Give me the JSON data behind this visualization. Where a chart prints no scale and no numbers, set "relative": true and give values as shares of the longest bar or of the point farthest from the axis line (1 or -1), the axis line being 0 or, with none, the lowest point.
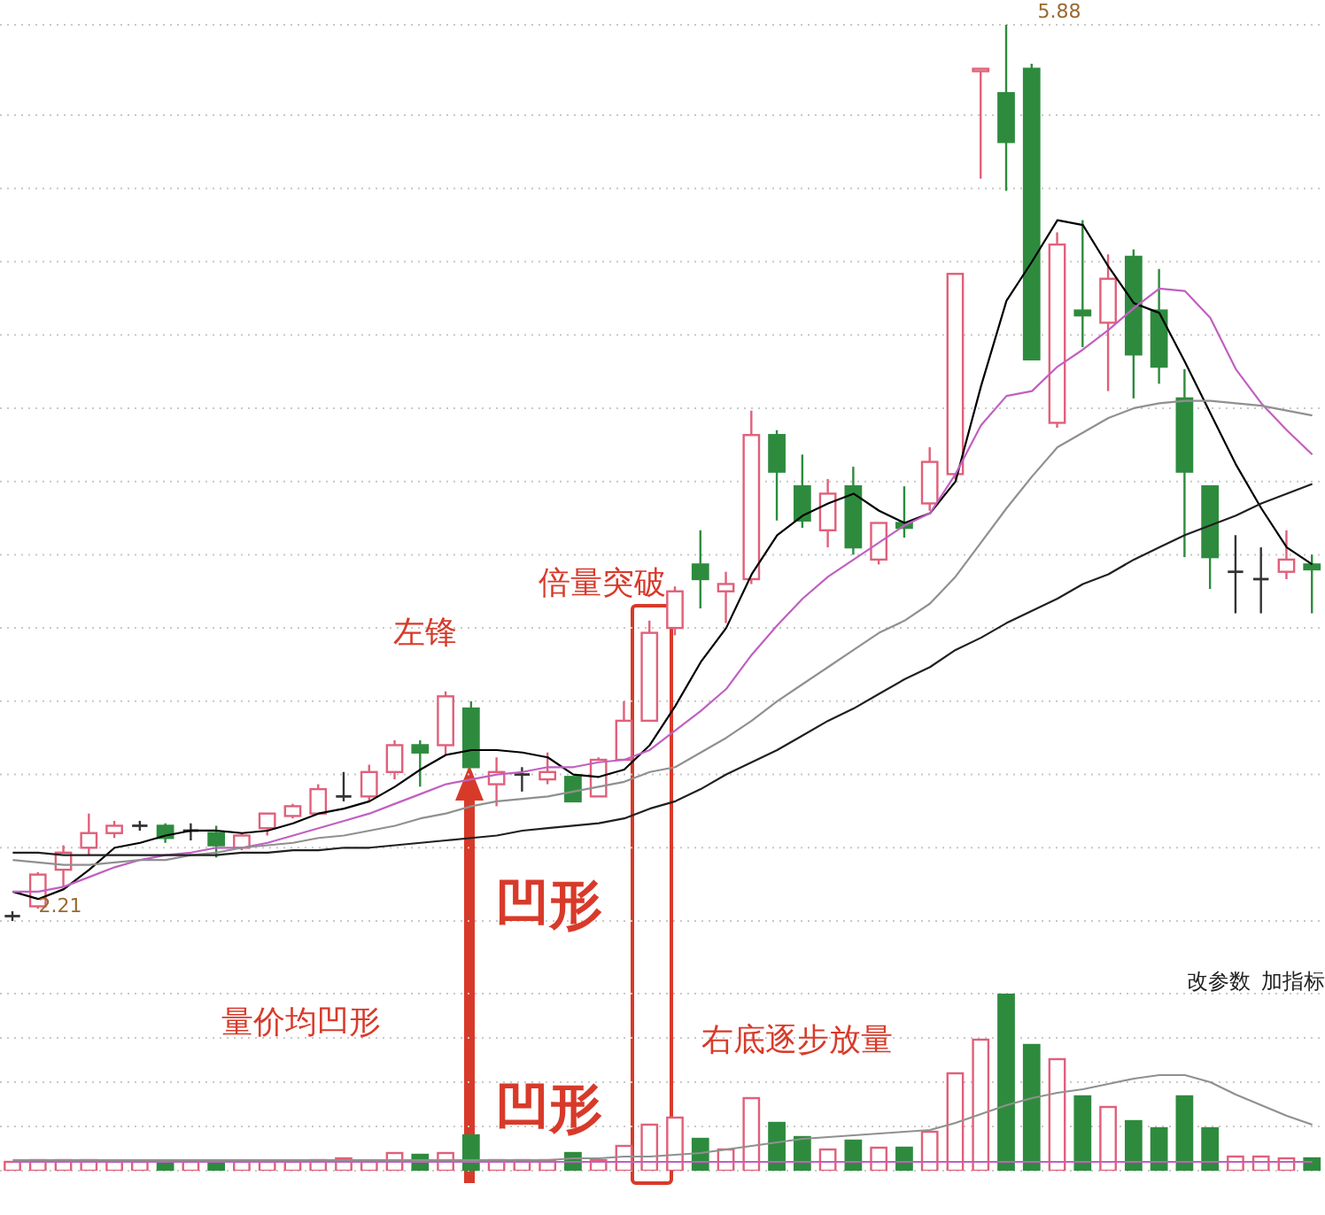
{
  "chart_data": [
    {
      "type": "candlestick",
      "categories": [
        null,
        null,
        null,
        null,
        null,
        null,
        null,
        null,
        null,
        null,
        null,
        null,
        null,
        null,
        null,
        null,
        null,
        null,
        null,
        null,
        null,
        null,
        null,
        null,
        null,
        null,
        null,
        null,
        null,
        null,
        null,
        null,
        null,
        null,
        null,
        null,
        null,
        null,
        null,
        null,
        null,
        null,
        null,
        null,
        null,
        null,
        null,
        null,
        null,
        null,
        null,
        null
      ],
      "ohlc": [
        [
          2.23,
          2.25,
          2.21,
          2.23
        ],
        [
          2.27,
          2.41,
          2.26,
          2.4
        ],
        [
          2.42,
          2.52,
          2.35,
          2.49
        ],
        [
          2.51,
          2.65,
          2.48,
          2.57
        ],
        [
          2.57,
          2.62,
          2.55,
          2.6
        ],
        [
          2.6,
          2.62,
          2.58,
          2.6
        ],
        [
          2.6,
          2.61,
          2.53,
          2.55
        ],
        [
          2.58,
          2.61,
          2.54,
          2.58
        ],
        [
          2.57,
          2.6,
          2.47,
          2.52
        ],
        [
          2.51,
          2.57,
          2.5,
          2.56
        ],
        [
          2.59,
          2.65,
          2.56,
          2.65
        ],
        [
          2.64,
          2.69,
          2.63,
          2.68
        ],
        [
          2.65,
          2.77,
          2.65,
          2.75
        ],
        [
          2.72,
          2.82,
          2.7,
          2.72
        ],
        [
          2.72,
          2.85,
          2.7,
          2.82
        ],
        [
          2.82,
          2.95,
          2.79,
          2.93
        ],
        [
          2.93,
          2.95,
          2.76,
          2.9
        ],
        [
          2.93,
          3.15,
          2.89,
          3.13
        ],
        [
          3.08,
          3.11,
          2.84,
          2.84
        ],
        [
          2.77,
          2.88,
          2.68,
          2.82
        ],
        [
          2.81,
          2.84,
          2.74,
          2.81
        ],
        [
          2.79,
          2.9,
          2.77,
          2.82
        ],
        [
          2.8,
          2.8,
          2.7,
          2.7
        ],
        [
          2.72,
          2.88,
          2.72,
          2.87
        ],
        [
          2.87,
          3.11,
          2.87,
          3.03
        ],
        [
          3.03,
          3.44,
          3.03,
          3.39
        ],
        [
          3.41,
          3.58,
          3.38,
          3.56
        ],
        [
          3.67,
          3.81,
          3.49,
          3.61
        ],
        [
          3.56,
          3.64,
          3.43,
          3.59
        ],
        [
          3.61,
          4.3,
          3.59,
          4.2
        ],
        [
          4.2,
          4.22,
          3.85,
          4.05
        ],
        [
          3.99,
          4.12,
          3.82,
          3.85
        ],
        [
          3.81,
          4.02,
          3.74,
          3.96
        ],
        [
          3.99,
          4.07,
          3.71,
          3.74
        ],
        [
          3.69,
          3.84,
          3.67,
          3.84
        ],
        [
          3.84,
          3.99,
          3.78,
          3.82
        ],
        [
          3.92,
          4.15,
          3.89,
          4.09
        ],
        [
          4.04,
          4.86,
          4.02,
          4.86
        ],
        [
          5.69,
          5.7,
          5.25,
          5.7
        ],
        [
          5.6,
          5.88,
          5.2,
          5.4
        ],
        [
          5.7,
          5.72,
          4.51,
          4.51
        ],
        [
          4.25,
          5.03,
          4.23,
          4.98
        ],
        [
          4.71,
          5.08,
          4.56,
          4.69
        ],
        [
          4.66,
          4.94,
          4.38,
          4.84
        ],
        [
          4.93,
          4.96,
          4.35,
          4.53
        ],
        [
          4.71,
          4.88,
          4.41,
          4.48
        ],
        [
          4.35,
          4.47,
          3.7,
          4.05
        ],
        [
          3.99,
          3.99,
          3.57,
          3.7
        ],
        [
          3.64,
          3.79,
          3.47,
          3.64
        ],
        [
          3.61,
          3.74,
          3.47,
          3.61
        ],
        [
          3.64,
          3.81,
          3.61,
          3.69
        ],
        [
          3.67,
          3.71,
          3.47,
          3.65
        ]
      ],
      "colors": [
        "#333333",
        "#e0607a",
        "#e0607a",
        "#e0607a",
        "#e0607a",
        "#333333",
        "#2e8b3e",
        "#333333",
        "#2e8b3e",
        "#e0607a",
        "#e0607a",
        "#e0607a",
        "#e0607a",
        "#333333",
        "#e0607a",
        "#e0607a",
        "#2e8b3e",
        "#e0607a",
        "#2e8b3e",
        "#e0607a",
        "#333333",
        "#e0607a",
        "#2e8b3e",
        "#e0607a",
        "#e0607a",
        "#e0607a",
        "#e0607a",
        "#2e8b3e",
        "#e0607a",
        "#e0607a",
        "#2e8b3e",
        "#2e8b3e",
        "#e0607a",
        "#2e8b3e",
        "#e0607a",
        "#2e8b3e",
        "#e0607a",
        "#e0607a",
        "#e0607a",
        "#2e8b3e",
        "#2e8b3e",
        "#e0607a",
        "#2e8b3e",
        "#e0607a",
        "#2e8b3e",
        "#2e8b3e",
        "#2e8b3e",
        "#2e8b3e",
        "#333333",
        "#333333",
        "#e0607a",
        "#2e8b3e"
      ],
      "series": [
        {
          "type": "line",
          "color": "#000000",
          "values": [
            2.33,
            2.3,
            2.34,
            2.42,
            2.51,
            2.53,
            2.56,
            2.58,
            2.58,
            2.57,
            2.58,
            2.61,
            2.65,
            2.67,
            2.7,
            2.76,
            2.83,
            2.89,
            2.91,
            2.91,
            2.9,
            2.88,
            2.81,
            2.8,
            2.83,
            2.93,
            3.09,
            3.27,
            3.41,
            3.63,
            3.79,
            3.87,
            3.92,
            3.96,
            3.89,
            3.84,
            3.88,
            4.01,
            4.4,
            4.75,
            4.91,
            5.08,
            5.06,
            4.89,
            4.74,
            4.7,
            4.5,
            4.29,
            4.08,
            3.9,
            3.74,
            3.67
          ]
        },
        {
          "type": "line",
          "color": "#c060c0",
          "values": [
            2.33,
            2.33,
            2.35,
            2.39,
            2.43,
            2.46,
            2.48,
            2.49,
            2.51,
            2.51,
            2.53,
            2.56,
            2.59,
            2.62,
            2.65,
            2.69,
            2.73,
            2.77,
            2.79,
            2.81,
            2.82,
            2.84,
            2.84,
            2.86,
            2.87,
            2.91,
            2.99,
            3.07,
            3.16,
            3.3,
            3.42,
            3.53,
            3.62,
            3.69,
            3.76,
            3.83,
            3.88,
            4.04,
            4.24,
            4.36,
            4.38,
            4.48,
            4.55,
            4.63,
            4.72,
            4.8,
            4.79,
            4.68,
            4.47,
            4.33,
            4.22,
            4.12
          ]
        },
        {
          "type": "line",
          "color": "#909090",
          "values": [
            2.46,
            2.45,
            2.44,
            2.44,
            2.45,
            2.46,
            2.46,
            2.48,
            2.49,
            2.51,
            2.52,
            2.53,
            2.55,
            2.56,
            2.58,
            2.6,
            2.63,
            2.65,
            2.68,
            2.7,
            2.71,
            2.72,
            2.74,
            2.76,
            2.78,
            2.82,
            2.84,
            2.9,
            2.96,
            3.03,
            3.11,
            3.18,
            3.25,
            3.32,
            3.39,
            3.44,
            3.51,
            3.62,
            3.76,
            3.9,
            4.03,
            4.15,
            4.21,
            4.27,
            4.31,
            4.33,
            4.34,
            4.34,
            4.33,
            4.32,
            4.3,
            4.28
          ]
        },
        {
          "type": "line",
          "color": "#202020",
          "values": [
            2.49,
            2.49,
            2.48,
            2.48,
            2.48,
            2.48,
            2.48,
            2.48,
            2.48,
            2.49,
            2.49,
            2.5,
            2.5,
            2.51,
            2.51,
            2.52,
            2.53,
            2.54,
            2.55,
            2.56,
            2.58,
            2.59,
            2.6,
            2.61,
            2.63,
            2.67,
            2.7,
            2.75,
            2.81,
            2.86,
            2.91,
            2.97,
            3.03,
            3.08,
            3.14,
            3.2,
            3.25,
            3.32,
            3.37,
            3.43,
            3.48,
            3.53,
            3.59,
            3.63,
            3.69,
            3.74,
            3.79,
            3.83,
            3.87,
            3.92,
            3.96,
            4.0
          ]
        }
      ],
      "annotations": [
        "左锋",
        "倍量突破",
        "凹形",
        "2.21",
        "5.88"
      ],
      "grid": "y",
      "tick_labels": false
    },
    {
      "type": "bar",
      "relative": true,
      "categories": [
        null,
        null,
        null,
        null,
        null,
        null,
        null,
        null,
        null,
        null,
        null,
        null,
        null,
        null,
        null,
        null,
        null,
        null,
        null,
        null,
        null,
        null,
        null,
        null,
        null,
        null,
        null,
        null,
        null,
        null,
        null,
        null,
        null,
        null,
        null,
        null,
        null,
        null,
        null,
        null,
        null,
        null,
        null,
        null,
        null,
        null,
        null,
        null,
        null,
        null,
        null,
        null
      ],
      "series": [
        {
          "type": "bar",
          "values": [
            0.05,
            0.06,
            0.06,
            0.06,
            0.05,
            0.05,
            0.04,
            0.05,
            0.04,
            0.05,
            0.05,
            0.05,
            0.06,
            0.07,
            0.05,
            0.1,
            0.09,
            0.1,
            0.2,
            0.06,
            0.06,
            0.06,
            0.1,
            0.06,
            0.14,
            0.26,
            0.3,
            0.18,
            0.12,
            0.41,
            0.27,
            0.19,
            0.12,
            0.17,
            0.13,
            0.13,
            0.22,
            0.55,
            0.74,
            1,
            0.71,
            0.63,
            0.42,
            0.36,
            0.28,
            0.24,
            0.42,
            0.24,
            0.08,
            0.08,
            0.07,
            0.07
          ],
          "colors": [
            "#e0607a",
            "#e0607a",
            "#e0607a",
            "#e0607a",
            "#e0607a",
            "#e0607a",
            "#2e8b3e",
            "#e0607a",
            "#2e8b3e",
            "#e0607a",
            "#e0607a",
            "#e0607a",
            "#e0607a",
            "#e0607a",
            "#e0607a",
            "#e0607a",
            "#2e8b3e",
            "#e0607a",
            "#2e8b3e",
            "#e0607a",
            "#e0607a",
            "#e0607a",
            "#2e8b3e",
            "#e0607a",
            "#e0607a",
            "#e0607a",
            "#e0607a",
            "#2e8b3e",
            "#e0607a",
            "#e0607a",
            "#2e8b3e",
            "#2e8b3e",
            "#e0607a",
            "#2e8b3e",
            "#e0607a",
            "#2e8b3e",
            "#e0607a",
            "#e0607a",
            "#e0607a",
            "#2e8b3e",
            "#2e8b3e",
            "#e0607a",
            "#2e8b3e",
            "#e0607a",
            "#2e8b3e",
            "#2e8b3e",
            "#2e8b3e",
            "#2e8b3e",
            "#e0607a",
            "#e0607a",
            "#e0607a",
            "#2e8b3e"
          ]
        },
        {
          "type": "line",
          "color": "#909090",
          "values": [
            0.06,
            0.06,
            0.06,
            0.06,
            0.06,
            0.06,
            0.06,
            0.06,
            0.06,
            0.06,
            0.06,
            0.06,
            0.06,
            0.06,
            0.06,
            0.06,
            0.06,
            0.06,
            0.06,
            0.06,
            0.06,
            0.06,
            0.07,
            0.07,
            0.08,
            0.08,
            0.09,
            0.1,
            0.12,
            0.14,
            0.16,
            0.18,
            0.19,
            0.2,
            0.21,
            0.22,
            0.23,
            0.27,
            0.32,
            0.37,
            0.41,
            0.44,
            0.46,
            0.49,
            0.52,
            0.54,
            0.54,
            0.5,
            0.43,
            0.37,
            0.31,
            0.26
          ]
        },
        {
          "type": "line",
          "color": "#c060c0",
          "values": [
            0.05,
            0.05,
            0.05,
            0.05,
            0.05,
            0.05,
            0.05,
            0.05,
            0.05,
            0.05,
            0.05,
            0.05,
            0.05,
            0.05,
            0.05,
            0.05,
            0.05,
            0.05,
            0.05,
            0.05,
            0.05,
            0.05,
            0.05,
            0.05,
            0.05,
            0.05,
            0.05,
            0.05,
            0.05,
            0.05,
            0.05,
            0.05,
            0.05,
            0.05,
            0.05,
            0.05,
            0.05,
            0.05,
            0.05,
            0.05,
            0.05,
            0.05,
            0.05,
            0.05,
            0.05,
            0.05,
            0.05,
            0.05,
            0.05,
            0.05,
            0.05,
            0.05
          ]
        }
      ],
      "annotations": [
        "量价均凹形",
        "凹形",
        "右底逐步放量",
        "改参数",
        "加指标"
      ],
      "grid": "y",
      "tick_labels": false
    }
  ]
}
